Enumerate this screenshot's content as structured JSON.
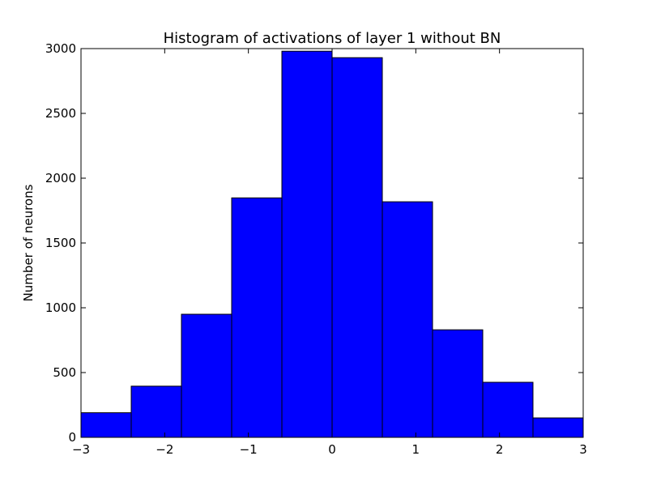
{
  "chart_data": {
    "type": "bar",
    "title": "Histogram of activations of layer 1  without BN",
    "xlabel": "",
    "ylabel": "Number of neurons",
    "bin_edges": [
      -3,
      -2.4,
      -1.8,
      -1.2,
      -0.6,
      0,
      0.6,
      1.2,
      1.8,
      2.4,
      3
    ],
    "values": [
      190,
      395,
      950,
      1848,
      2980,
      2930,
      1818,
      830,
      425,
      150
    ],
    "xlim": [
      -3,
      3
    ],
    "ylim": [
      0,
      3000
    ],
    "xticks": [
      -3,
      -2,
      -1,
      0,
      1,
      2,
      3
    ],
    "xtick_labels": [
      "−3",
      "−2",
      "−1",
      "0",
      "1",
      "2",
      "3"
    ],
    "yticks": [
      0,
      500,
      1000,
      1500,
      2000,
      2500,
      3000
    ],
    "ytick_labels": [
      "0",
      "500",
      "1000",
      "1500",
      "2000",
      "2500",
      "3000"
    ],
    "bar_color": "#0000ff",
    "edge_color": "#000000",
    "grid": false,
    "legend": "none"
  }
}
